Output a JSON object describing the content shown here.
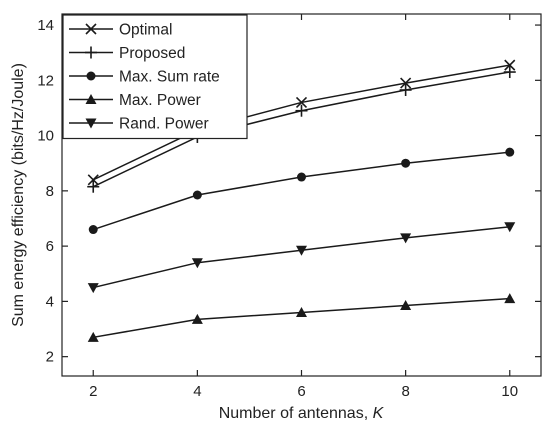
{
  "chart_data": {
    "type": "line",
    "title": "",
    "xlabel": "Number of antennas, ",
    "xlabel_var": "K",
    "ylabel": "Sum energy efficiency (bits/Hz/Joule)",
    "xlim": [
      1.4,
      10.6
    ],
    "ylim": [
      1.3,
      14.4
    ],
    "xticks": [
      2,
      4,
      6,
      8,
      10
    ],
    "yticks": [
      2,
      4,
      6,
      8,
      10,
      12,
      14
    ],
    "x": [
      2,
      4,
      6,
      8,
      10
    ],
    "legend_position": "top-left",
    "grid": false,
    "series": [
      {
        "name": "Optimal",
        "marker": "x-cross",
        "values": [
          8.4,
          10.2,
          11.2,
          11.9,
          12.55
        ]
      },
      {
        "name": "Proposed",
        "marker": "plus",
        "values": [
          8.15,
          9.95,
          10.9,
          11.65,
          12.3
        ]
      },
      {
        "name": "Max. Sum rate",
        "marker": "circle",
        "values": [
          6.6,
          7.85,
          8.5,
          9.0,
          9.4
        ]
      },
      {
        "name": "Max. Power",
        "marker": "triangle-up",
        "values": [
          2.7,
          3.35,
          3.6,
          3.85,
          4.1
        ]
      },
      {
        "name": "Rand. Power",
        "marker": "triangle-down",
        "values": [
          4.5,
          5.4,
          5.85,
          6.3,
          6.7
        ]
      }
    ],
    "colors": {
      "line": "#1a1a1a",
      "background": "#ffffff"
    }
  }
}
